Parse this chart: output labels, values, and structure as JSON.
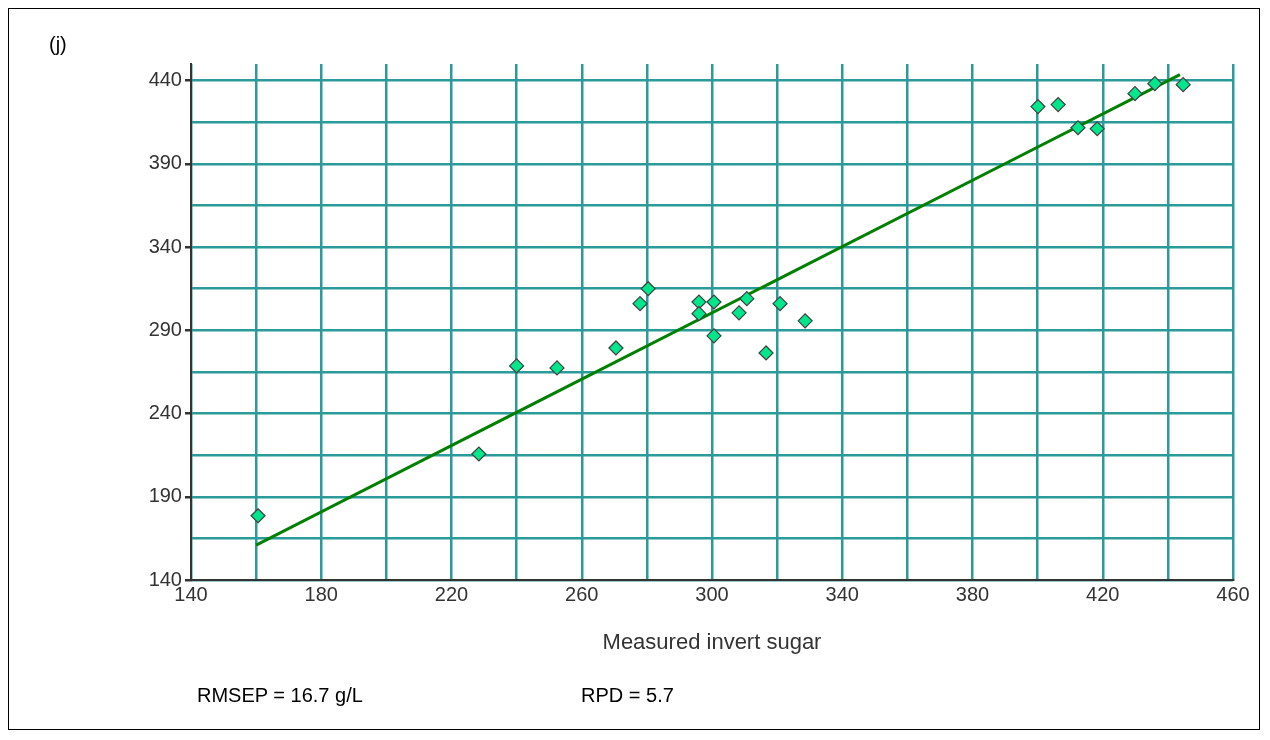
{
  "chart_data": {
    "type": "scatter",
    "title": "(j)",
    "xlabel": "Measured invert sugar",
    "annotations": [
      "RMSEP = 16.7 g/L",
      "RPD = 5.7"
    ],
    "xlim": [
      140,
      460
    ],
    "xticks": [
      140,
      {
        "value": 160,
        "label": null
      },
      180,
      {
        "value": 200,
        "label": null
      },
      220,
      {
        "value": 240,
        "label": null
      },
      260,
      {
        "value": 280,
        "label": null
      },
      300,
      {
        "value": 320,
        "label": null
      },
      340,
      {
        "value": 360,
        "label": null
      },
      380,
      {
        "value": 400,
        "label": null
      },
      420,
      {
        "value": 440,
        "label": null
      },
      460
    ],
    "ylim": [
      140,
      450
    ],
    "yticks": [
      140,
      {
        "value": 165,
        "label": null
      },
      190,
      {
        "value": 215,
        "label": null
      },
      240,
      {
        "value": 265,
        "label": null
      },
      290,
      {
        "value": 315,
        "label": null
      },
      340,
      {
        "value": 365,
        "label": null
      },
      390,
      {
        "value": 415,
        "label": null
      },
      440
    ],
    "grid": true,
    "legend": false,
    "marker": "diamond",
    "series": [
      {
        "color": "#00e68a",
        "x": [
          160.6,
          228.4,
          240,
          252.4,
          270.5,
          277.9,
          280.4,
          296,
          296,
          300.6,
          300.6,
          308.3,
          310.7,
          316.6,
          320.9,
          328.6,
          400.1,
          406.3,
          412.4,
          418.3,
          429.9,
          436,
          444.7
        ],
        "values": [
          178.6,
          215.7,
          268.6,
          267.4,
          279.4,
          306,
          315,
          307,
          300,
          307,
          286.7,
          300.5,
          309,
          276.4,
          306,
          295.7,
          424.4,
          425.6,
          411.7,
          411.1,
          432.2,
          438.2,
          437.6
        ]
      },
      {
        "type": "line",
        "color": "#008000",
        "marker": "none",
        "x": [
          160,
          443.7
        ],
        "values": [
          161,
          443.6
        ]
      }
    ]
  }
}
